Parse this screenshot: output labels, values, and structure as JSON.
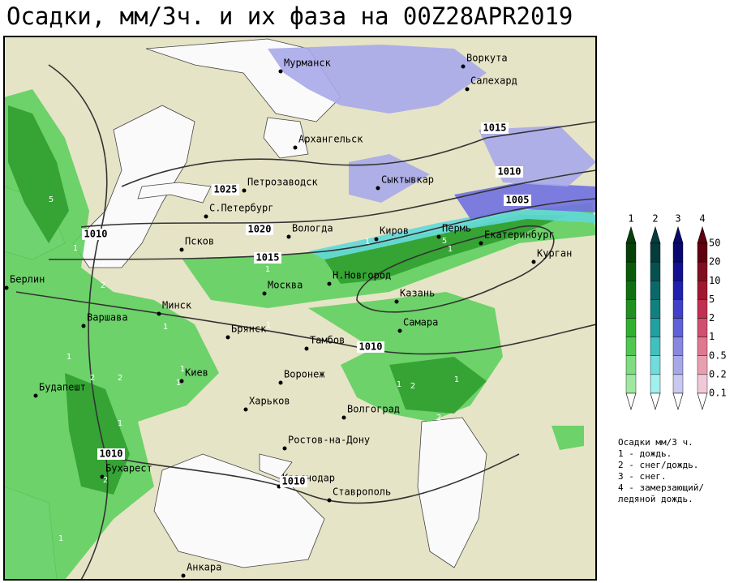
{
  "title": "Осадки, мм/3ч. и их фаза на 00Z28APR2019",
  "cities": [
    "Мурманск",
    "Воркута",
    "Салехард",
    "Архангельск",
    "Петрозаводск",
    "Сыктывкар",
    "С.Петербург",
    "Вологда",
    "Киров",
    "Пермь",
    "Екатеринбург",
    "Курган",
    "Псков",
    "Берлин",
    "Москва",
    "Н.Новгород",
    "Казань",
    "Минск",
    "Варшава",
    "Самара",
    "Брянск",
    "Тамбов",
    "Киев",
    "Воронеж",
    "Будапешт",
    "Харьков",
    "Волгоград",
    "Ростов-на-Дону",
    "Бухарест",
    "Краснодар",
    "Ставрополь",
    "Анкара"
  ],
  "isobar_labels": [
    "1025",
    "1020",
    "1015",
    "1015",
    "1010",
    "1005",
    "1010",
    "1010",
    "1010",
    "1010"
  ],
  "phase_labels": [
    "5",
    "1",
    "1",
    "2",
    "1",
    "1",
    "5",
    "1",
    "1",
    "1",
    "1",
    "2",
    "2",
    "1",
    "1",
    "1",
    "2",
    "1",
    "2",
    "1",
    "2",
    "1"
  ],
  "legend": {
    "phase_numbers": [
      "1",
      "2",
      "3",
      "4"
    ],
    "scale": [
      50,
      20,
      10,
      5,
      2,
      1,
      0.5,
      0.2,
      0.1
    ]
  },
  "notes": [
    "Осадки мм/3 ч.",
    "1 - дождь.",
    "2 - снег/дождь.",
    "3 - снег.",
    "4 - замерзающий/",
    "ледяной дождь."
  ]
}
